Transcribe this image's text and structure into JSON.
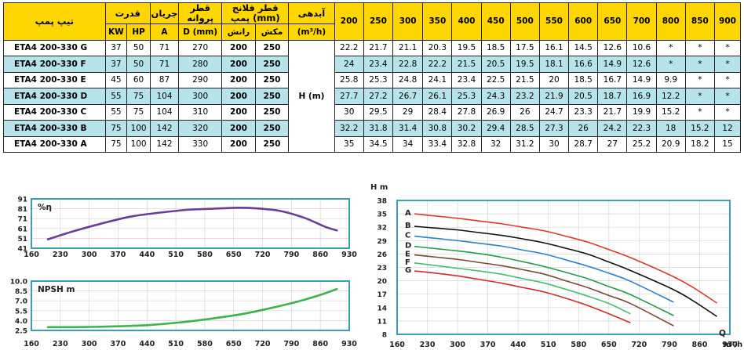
{
  "table": {
    "headers": {
      "model": "تیپ پمپ",
      "power": "قدرت",
      "current": "جریان",
      "impeller": "قطر پروانه",
      "flange": "قطر فلانج پمپ (mm)",
      "flow": "آبدهی",
      "kw": "KW",
      "hp": "HP",
      "a": "A",
      "dmm": "D (mm)",
      "discharge": "رانش",
      "suction": "مکش",
      "flow_unit": "(m³/h)",
      "head_label": "H (m)"
    },
    "flow_points": [
      "200",
      "250",
      "300",
      "350",
      "400",
      "450",
      "500",
      "550",
      "600",
      "650",
      "700",
      "800",
      "850",
      "900"
    ],
    "rows": [
      {
        "model": "ETA4 200-330 G",
        "kw": "37",
        "hp": "50",
        "a": "71",
        "d": "270",
        "dis": "200",
        "suc": "250",
        "h": [
          "22.2",
          "21.7",
          "21.1",
          "20.3",
          "19.5",
          "18.5",
          "17.5",
          "16.1",
          "14.5",
          "12.6",
          "10.6",
          "*",
          "*",
          "*"
        ]
      },
      {
        "model": "ETA4 200-330 F",
        "kw": "37",
        "hp": "50",
        "a": "71",
        "d": "280",
        "dis": "200",
        "suc": "250",
        "h": [
          "24",
          "23.4",
          "22.8",
          "22.2",
          "21.5",
          "20.5",
          "19.5",
          "18.1",
          "16.6",
          "14.9",
          "12.6",
          "*",
          "*",
          "*"
        ]
      },
      {
        "model": "ETA4 200-330 E",
        "kw": "45",
        "hp": "60",
        "a": "87",
        "d": "290",
        "dis": "200",
        "suc": "250",
        "h": [
          "25.8",
          "25.3",
          "24.8",
          "24.1",
          "23.4",
          "22.5",
          "21.5",
          "20",
          "18.5",
          "16.7",
          "14.9",
          "9.9",
          "*",
          "*"
        ]
      },
      {
        "model": "ETA4 200-330 D",
        "kw": "55",
        "hp": "75",
        "a": "104",
        "d": "300",
        "dis": "200",
        "suc": "250",
        "h": [
          "27.7",
          "27.2",
          "26.7",
          "26.1",
          "25.3",
          "24.3",
          "23.2",
          "21.9",
          "20.5",
          "18.7",
          "16.9",
          "12.2",
          "*",
          "*"
        ]
      },
      {
        "model": "ETA4 200-330 C",
        "kw": "55",
        "hp": "75",
        "a": "104",
        "d": "310",
        "dis": "200",
        "suc": "250",
        "h": [
          "30",
          "29.5",
          "29",
          "28.4",
          "27.8",
          "26.9",
          "26",
          "24.7",
          "23.3",
          "21.7",
          "19.9",
          "15.2",
          "*",
          "*"
        ]
      },
      {
        "model": "ETA4 200-330 B",
        "kw": "75",
        "hp": "100",
        "a": "142",
        "d": "320",
        "dis": "200",
        "suc": "250",
        "h": [
          "32.2",
          "31.8",
          "31.4",
          "30.8",
          "30.2",
          "29.4",
          "28.5",
          "27.3",
          "26",
          "24.2",
          "22.3",
          "18",
          "15.2",
          "12"
        ]
      },
      {
        "model": "ETA4 200-330 A",
        "kw": "75",
        "hp": "100",
        "a": "142",
        "d": "330",
        "dis": "200",
        "suc": "250",
        "h": [
          "35",
          "34.5",
          "34",
          "33.4",
          "32.8",
          "32",
          "31.2",
          "30",
          "28.7",
          "27",
          "25.2",
          "20.9",
          "18.2",
          "15"
        ]
      }
    ]
  },
  "chart_data": [
    {
      "type": "line",
      "label": "%η",
      "x_ticks": [
        160,
        230,
        300,
        370,
        440,
        510,
        580,
        650,
        720,
        790,
        860,
        930
      ],
      "y_ticks": [
        91,
        81,
        71,
        61,
        51,
        41
      ],
      "xlim": [
        160,
        930
      ],
      "ylim": [
        41,
        91
      ],
      "color": "#6a3d9a",
      "series": [
        {
          "x": [
            200,
            260,
            330,
            400,
            470,
            540,
            600,
            660,
            700,
            760,
            820,
            870,
            900
          ],
          "y": [
            50,
            58,
            66,
            73,
            77,
            80,
            81,
            82,
            81.5,
            79,
            72,
            63,
            59
          ]
        }
      ]
    },
    {
      "type": "line",
      "label": "NPSH m",
      "x_ticks": [
        160,
        230,
        300,
        370,
        440,
        510,
        580,
        650,
        720,
        790,
        860,
        930
      ],
      "y_ticks": [
        "10.0",
        "8.5",
        "7.0",
        "5.5",
        "4.0",
        "2.5"
      ],
      "xlim": [
        160,
        930
      ],
      "ylim": [
        2.5,
        10
      ],
      "color": "#3cb44b",
      "series": [
        {
          "x": [
            200,
            260,
            320,
            380,
            440,
            500,
            560,
            620,
            680,
            740,
            800,
            860,
            900
          ],
          "y": [
            3.0,
            3.0,
            3.05,
            3.15,
            3.3,
            3.6,
            4.0,
            4.5,
            5.1,
            5.9,
            6.8,
            7.9,
            8.8
          ]
        }
      ]
    },
    {
      "type": "line",
      "title_y": "H m",
      "title_x": "Q",
      "x_unit": "m³/h",
      "x_ticks": [
        160,
        230,
        300,
        370,
        440,
        510,
        580,
        650,
        720,
        790,
        860,
        930
      ],
      "y_ticks": [
        38,
        35,
        32,
        29,
        26,
        23,
        20,
        17,
        14,
        11,
        8
      ],
      "xlim": [
        160,
        930
      ],
      "ylim": [
        8,
        38
      ],
      "series": [
        {
          "name": "A",
          "color": "#e0372b",
          "x": [
            200,
            250,
            300,
            350,
            400,
            450,
            500,
            550,
            600,
            650,
            700,
            800,
            850,
            900
          ],
          "y": [
            35,
            34.5,
            34,
            33.4,
            32.8,
            32,
            31.2,
            30,
            28.7,
            27,
            25.2,
            20.9,
            18.2,
            15
          ]
        },
        {
          "name": "B",
          "color": "#111111",
          "x": [
            200,
            250,
            300,
            350,
            400,
            450,
            500,
            550,
            600,
            650,
            700,
            800,
            850,
            900
          ],
          "y": [
            32.2,
            31.8,
            31.4,
            30.8,
            30.2,
            29.4,
            28.5,
            27.3,
            26,
            24.2,
            22.3,
            18,
            15.2,
            12
          ]
        },
        {
          "name": "C",
          "color": "#2a7fd4",
          "x": [
            200,
            250,
            300,
            350,
            400,
            450,
            500,
            550,
            600,
            650,
            700,
            800
          ],
          "y": [
            30,
            29.5,
            29,
            28.4,
            27.8,
            26.9,
            26,
            24.7,
            23.3,
            21.7,
            19.9,
            15.2
          ]
        },
        {
          "name": "D",
          "color": "#1e9e4a",
          "x": [
            200,
            250,
            300,
            350,
            400,
            450,
            500,
            550,
            600,
            650,
            700,
            800
          ],
          "y": [
            27.7,
            27.2,
            26.7,
            26.1,
            25.3,
            24.3,
            23.2,
            21.9,
            20.5,
            18.7,
            16.9,
            12.2
          ]
        },
        {
          "name": "E",
          "color": "#7a4b2a",
          "x": [
            200,
            250,
            300,
            350,
            400,
            450,
            500,
            550,
            600,
            650,
            700,
            800
          ],
          "y": [
            25.8,
            25.3,
            24.8,
            24.1,
            23.4,
            22.5,
            21.5,
            20,
            18.5,
            16.7,
            14.9,
            9.9
          ]
        },
        {
          "name": "F",
          "color": "#40c070",
          "x": [
            200,
            250,
            300,
            350,
            400,
            450,
            500,
            550,
            600,
            650,
            700
          ],
          "y": [
            24,
            23.4,
            22.8,
            22.2,
            21.5,
            20.5,
            19.5,
            18.1,
            16.6,
            14.9,
            12.6
          ]
        },
        {
          "name": "G",
          "color": "#d42a2a",
          "x": [
            200,
            250,
            300,
            350,
            400,
            450,
            500,
            550,
            600,
            650,
            700
          ],
          "y": [
            22.2,
            21.7,
            21.1,
            20.3,
            19.5,
            18.5,
            17.5,
            16.1,
            14.5,
            12.6,
            10.6
          ]
        }
      ]
    }
  ]
}
